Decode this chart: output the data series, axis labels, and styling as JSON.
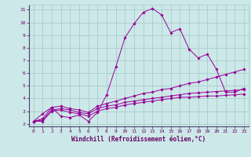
{
  "xlabel": "Windchill (Refroidissement éolien,°C)",
  "background_color": "#cce8e8",
  "grid_color": "#aacccc",
  "line_color": "#990099",
  "xlim": [
    -0.5,
    23.5
  ],
  "ylim": [
    1.8,
    11.4
  ],
  "xticks": [
    0,
    1,
    2,
    3,
    4,
    5,
    6,
    7,
    8,
    9,
    10,
    11,
    12,
    13,
    14,
    15,
    16,
    17,
    18,
    19,
    20,
    21,
    22,
    23
  ],
  "yticks": [
    2,
    3,
    4,
    5,
    6,
    7,
    8,
    9,
    10,
    11
  ],
  "series1_x": [
    0,
    1,
    2,
    3,
    4,
    5,
    6,
    7,
    8,
    9,
    10,
    11,
    12,
    13,
    14,
    15,
    16,
    17,
    18,
    19,
    20,
    21,
    22,
    23
  ],
  "series1_y": [
    2.2,
    2.8,
    3.3,
    2.6,
    2.5,
    2.7,
    2.2,
    2.9,
    4.3,
    6.5,
    8.8,
    9.9,
    10.8,
    11.1,
    10.6,
    9.2,
    9.5,
    7.9,
    7.2,
    7.5,
    6.3,
    4.5,
    4.5,
    4.8
  ],
  "series2_x": [
    0,
    1,
    2,
    3,
    4,
    5,
    6,
    7,
    8,
    9,
    10,
    11,
    12,
    13,
    14,
    15,
    16,
    17,
    18,
    19,
    20,
    21,
    22,
    23
  ],
  "series2_y": [
    2.2,
    2.4,
    3.3,
    3.4,
    3.2,
    3.1,
    2.9,
    3.4,
    3.6,
    3.8,
    4.0,
    4.2,
    4.4,
    4.5,
    4.7,
    4.8,
    5.0,
    5.2,
    5.3,
    5.5,
    5.7,
    5.9,
    6.1,
    6.3
  ],
  "series3_x": [
    0,
    1,
    2,
    3,
    4,
    5,
    6,
    7,
    8,
    9,
    10,
    11,
    12,
    13,
    14,
    15,
    16,
    17,
    18,
    19,
    20,
    21,
    22,
    23
  ],
  "series3_y": [
    2.2,
    2.3,
    3.1,
    3.2,
    3.1,
    2.9,
    2.8,
    3.2,
    3.4,
    3.5,
    3.7,
    3.8,
    3.9,
    4.0,
    4.1,
    4.2,
    4.3,
    4.4,
    4.45,
    4.5,
    4.55,
    4.6,
    4.65,
    4.7
  ],
  "series4_x": [
    0,
    1,
    2,
    3,
    4,
    5,
    6,
    7,
    8,
    9,
    10,
    11,
    12,
    13,
    14,
    15,
    16,
    17,
    18,
    19,
    20,
    21,
    22,
    23
  ],
  "series4_y": [
    2.2,
    2.2,
    3.0,
    3.1,
    2.9,
    2.8,
    2.6,
    3.0,
    3.2,
    3.3,
    3.5,
    3.6,
    3.7,
    3.8,
    3.9,
    4.0,
    4.1,
    4.1,
    4.15,
    4.2,
    4.2,
    4.25,
    4.3,
    4.35
  ]
}
